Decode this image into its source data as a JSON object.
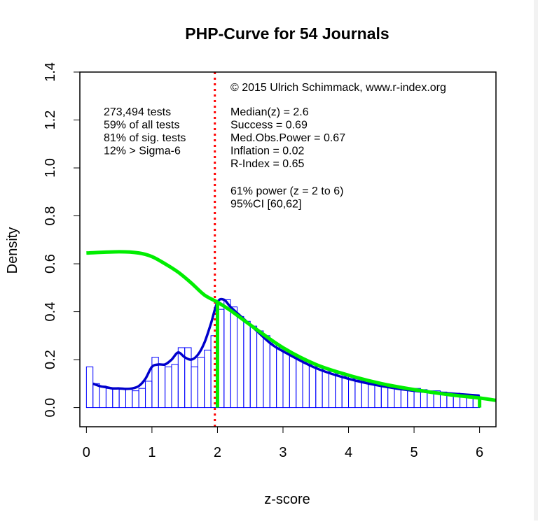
{
  "colors": {
    "histogram": "#0000ff",
    "density_curve": "#0000cc",
    "fit_curve": "#00ee00",
    "cutoff_line": "#ff0000",
    "axis": "#000000",
    "background": "#ffffff"
  },
  "chart_data": {
    "type": "bar",
    "title": "PHP-Curve for 54 Journals",
    "xlabel": "z-score",
    "ylabel": "Density",
    "xlim": [
      -0.1,
      6.25
    ],
    "ylim": [
      -0.08,
      1.4
    ],
    "x_ticks": [
      0,
      1,
      2,
      3,
      4,
      5,
      6
    ],
    "x_tick_labels": [
      "0",
      "1",
      "2",
      "3",
      "4",
      "5",
      "6"
    ],
    "y_ticks": [
      0.0,
      0.2,
      0.4,
      0.6,
      0.8,
      1.0,
      1.2,
      1.4
    ],
    "y_tick_labels": [
      "0.0",
      "0.2",
      "0.4",
      "0.6",
      "0.8",
      "1.0",
      "1.2",
      "1.4"
    ],
    "histogram": {
      "bin_width": 0.1,
      "start": 0,
      "values": [
        0.17,
        0.1,
        0.09,
        0.08,
        0.08,
        0.08,
        0.08,
        0.07,
        0.08,
        0.11,
        0.21,
        0.18,
        0.17,
        0.18,
        0.25,
        0.25,
        0.17,
        0.21,
        0.24,
        0.3,
        0.41,
        0.45,
        0.42,
        0.38,
        0.36,
        0.34,
        0.32,
        0.3,
        0.27,
        0.25,
        0.23,
        0.22,
        0.21,
        0.19,
        0.18,
        0.17,
        0.16,
        0.15,
        0.14,
        0.13,
        0.12,
        0.115,
        0.11,
        0.105,
        0.1,
        0.095,
        0.09,
        0.09,
        0.085,
        0.08,
        0.08,
        0.075,
        0.07,
        0.07,
        0.065,
        0.06,
        0.06,
        0.055,
        0.055,
        0.05
      ]
    },
    "series": [
      {
        "name": "observed density",
        "x": [
          0.1,
          0.2,
          0.3,
          0.4,
          0.5,
          0.6,
          0.7,
          0.8,
          0.9,
          1.0,
          1.1,
          1.2,
          1.3,
          1.4,
          1.5,
          1.6,
          1.7,
          1.8,
          1.9,
          2.0,
          2.1,
          2.2,
          2.4,
          2.6,
          2.8,
          3.0,
          3.5,
          4.0,
          4.5,
          5.0,
          5.5,
          6.0
        ],
        "y": [
          0.1,
          0.09,
          0.085,
          0.08,
          0.08,
          0.078,
          0.08,
          0.09,
          0.12,
          0.17,
          0.18,
          0.18,
          0.2,
          0.23,
          0.21,
          0.2,
          0.22,
          0.27,
          0.35,
          0.44,
          0.45,
          0.42,
          0.37,
          0.32,
          0.27,
          0.235,
          0.165,
          0.12,
          0.09,
          0.07,
          0.06,
          0.05
        ]
      },
      {
        "name": "fitted curve",
        "x": [
          0,
          0.5,
          0.8,
          1.0,
          1.2,
          1.4,
          1.6,
          1.8,
          2.0,
          2.2,
          2.5,
          3.0,
          3.5,
          4.0,
          4.5,
          5.0,
          5.5,
          6.0,
          6.25
        ],
        "y": [
          0.645,
          0.65,
          0.645,
          0.63,
          0.6,
          0.565,
          0.52,
          0.47,
          0.44,
          0.405,
          0.345,
          0.25,
          0.18,
          0.135,
          0.1,
          0.075,
          0.055,
          0.04,
          0.03
        ]
      }
    ],
    "fit_drop_lines": [
      {
        "x": 2.0,
        "y_top": 0.44
      },
      {
        "x": 6.0,
        "y_top": 0.04
      }
    ],
    "cutoff": {
      "x": 1.96,
      "style": "dotted"
    },
    "annotations_left": [
      "273,494 tests",
      "59% of all tests",
      "81% of sig. tests",
      "12% > Sigma-6"
    ],
    "copyright": "© 2015 Ulrich Schimmack, www.r-index.org",
    "annotations_right": [
      "Median(z) = 2.6",
      "Success = 0.69",
      "Med.Obs.Power = 0.67",
      "Inflation = 0.02",
      "R-Index = 0.65"
    ],
    "annotations_power": [
      "61% power (z = 2 to 6)",
      "95%CI [60,62]"
    ]
  }
}
